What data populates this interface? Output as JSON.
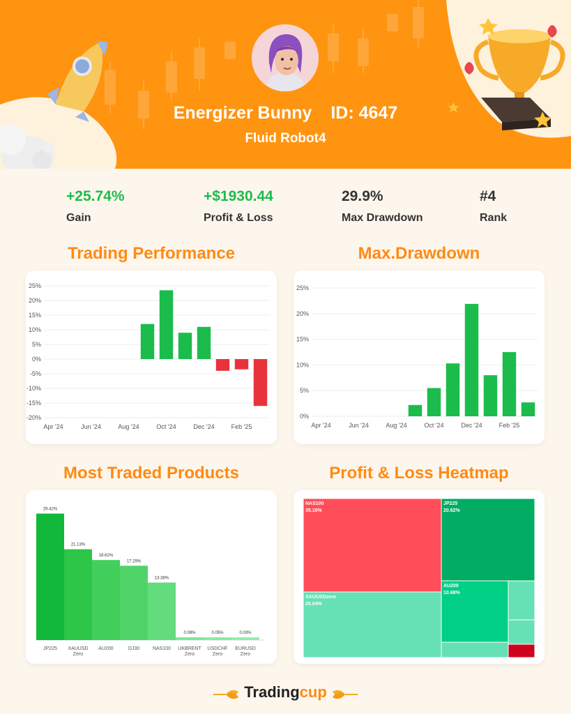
{
  "profile": {
    "name": "Energizer Bunny",
    "id_label": "ID: 4647",
    "robot": "Fluid Robot4"
  },
  "stats": [
    {
      "value": "+25.74%",
      "label": "Gain",
      "color": "#1cbc4c"
    },
    {
      "value": "+$1930.44",
      "label": "Profit & Loss",
      "color": "#1cbc4c"
    },
    {
      "value": "29.9%",
      "label": "Max Drawdown",
      "color": "#333333"
    },
    {
      "value": "#4",
      "label": "Rank",
      "color": "#333333"
    }
  ],
  "sections": {
    "trading_performance": "Trading Performance",
    "max_drawdown": "Max.Drawdown",
    "most_traded": "Most Traded Products",
    "heatmap": "Profit & Loss Heatmap"
  },
  "footer": {
    "brand_a": "Trading",
    "brand_b": "cup"
  },
  "colors": {
    "orange": "#ff9410",
    "green": "#1cbc4c",
    "red": "#e8333c"
  },
  "chart_data": [
    {
      "type": "bar",
      "name": "trading_performance",
      "x_ticks": [
        "Apr '24",
        "Jun '24",
        "Aug '24",
        "Oct '24",
        "Dec '24",
        "Feb '25"
      ],
      "y_ticks": [
        "25%",
        "20%",
        "15%",
        "10%",
        "5%",
        "0%",
        "-5%",
        "-10%",
        "-15%",
        "-20%"
      ],
      "ylim": [
        -20,
        25
      ],
      "months": [
        "Apr '24",
        "May '24",
        "Jun '24",
        "Jul '24",
        "Aug '24",
        "Sep '24",
        "Oct '24",
        "Nov '24",
        "Dec '24",
        "Jan '25",
        "Feb '25",
        "Mar '25"
      ],
      "values": [
        0,
        0,
        0,
        0,
        0,
        12,
        23.5,
        9,
        11,
        -4,
        -3.5,
        -16
      ]
    },
    {
      "type": "bar",
      "name": "max_drawdown",
      "x_ticks": [
        "Apr '24",
        "Jun '24",
        "Aug '24",
        "Oct '24",
        "Dec '24",
        "Feb '25"
      ],
      "y_ticks": [
        "25%",
        "20%",
        "15%",
        "10%",
        "5%",
        "0%"
      ],
      "ylim": [
        0,
        25
      ],
      "months": [
        "Apr '24",
        "May '24",
        "Jun '24",
        "Jul '24",
        "Aug '24",
        "Sep '24",
        "Oct '24",
        "Nov '24",
        "Dec '24",
        "Jan '25",
        "Feb '25",
        "Mar '25"
      ],
      "values": [
        0,
        0,
        0,
        0,
        0,
        2.2,
        5.5,
        10.3,
        21.9,
        8,
        12.5,
        2.7
      ]
    },
    {
      "type": "bar",
      "name": "most_traded_products",
      "categories": [
        "JP225",
        "XAUUSD\nZero",
        "AU200",
        "DJ30",
        "NAS100",
        "UKBRENT\nZero",
        "USDCHF\nZero",
        "EURUSD\nZero"
      ],
      "values": [
        29.42,
        21.13,
        18.62,
        17.29,
        13.38,
        0.08,
        0.05,
        0.03
      ],
      "labels": [
        "29.42%",
        "21.13%",
        "18.62%",
        "17.29%",
        "13.38%",
        "0.08%",
        "0.05%",
        "0.03%"
      ]
    },
    {
      "type": "heatmap",
      "name": "profit_loss_heatmap",
      "cells": [
        {
          "label": "NAS100",
          "value": "35.16%",
          "color": "#ff4d5a"
        },
        {
          "label": "JP225",
          "value": "20.62%",
          "color": "#00ad63"
        },
        {
          "label": "XAUUSDzero",
          "value": "25.04%",
          "color": "#66e0b5"
        },
        {
          "label": "AU200",
          "value": "10.68%",
          "color": "#00cf86"
        },
        {
          "label": "",
          "value": "",
          "color": "#66e0b5"
        },
        {
          "label": "",
          "value": "",
          "color": "#66e0b5"
        },
        {
          "label": "",
          "value": "",
          "color": "#66e0b5"
        },
        {
          "label": "",
          "value": "",
          "color": "#d0021b"
        }
      ]
    }
  ]
}
